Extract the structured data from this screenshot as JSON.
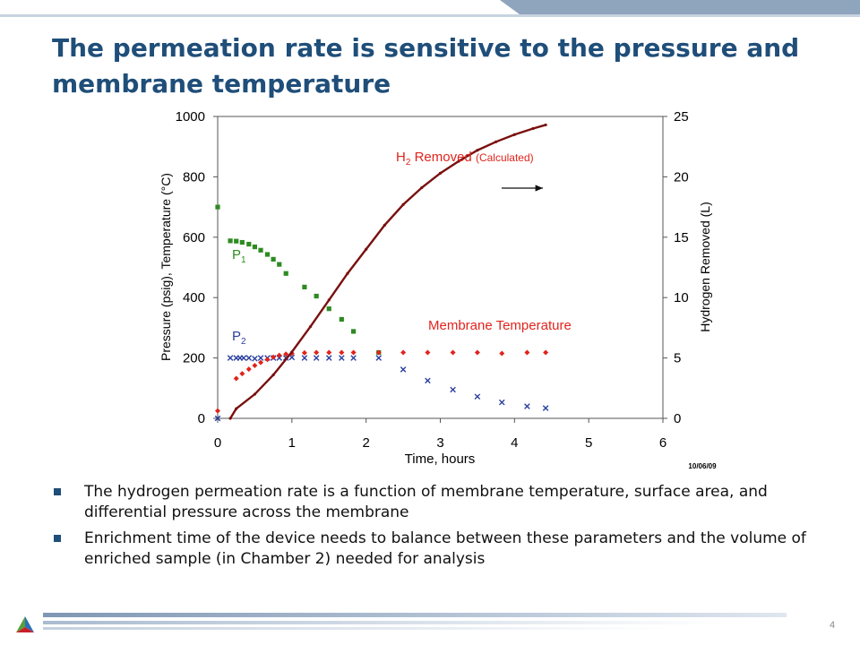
{
  "slide": {
    "title": "The permeation rate is sensitive to the pressure and membrane temperature",
    "bullets": [
      "The hydrogen permeation rate is a function of membrane temperature, surface area, and differential pressure across the membrane",
      "Enrichment time of the device needs to balance between these parameters and the volume of enriched sample (in Chamber 2) needed for analysis"
    ],
    "page_number": "4"
  },
  "colors": {
    "title": "#1f4e79",
    "p1": "#2e8b22",
    "p2": "#2b3f9e",
    "temperature": "#e0241c",
    "h2_removed": "#7a1010"
  },
  "chart_data": {
    "type": "scatter",
    "xlabel": "Time, hours",
    "ylabel": "Pressure (psig), Temperature (°C)",
    "y2label": "Hydrogen Removed (L)",
    "x_ticks": [
      "0",
      "1",
      "2",
      "3",
      "4",
      "5",
      "6"
    ],
    "y_ticks": [
      "0",
      "200",
      "400",
      "600",
      "800",
      "1000"
    ],
    "y2_ticks": [
      "0",
      "5",
      "10",
      "15",
      "20",
      "25"
    ],
    "xlim": [
      0,
      6
    ],
    "ylim": [
      0,
      1000
    ],
    "y2lim": [
      0,
      25
    ],
    "date_stamp": "10/06/09",
    "grid": false,
    "series": [
      {
        "name": "P",
        "subscript": "1",
        "marker": "square",
        "axis": "left",
        "x": [
          0,
          0.17,
          0.25,
          0.33,
          0.42,
          0.5,
          0.58,
          0.67,
          0.75,
          0.83,
          0.92,
          1.17,
          1.33,
          1.5,
          1.67,
          1.83,
          2.17
        ],
        "y": [
          700,
          588,
          587,
          583,
          577,
          568,
          557,
          543,
          527,
          510,
          480,
          435,
          405,
          363,
          328,
          288,
          218
        ]
      },
      {
        "name": "P",
        "subscript": "2",
        "marker": "x",
        "axis": "left",
        "x": [
          0,
          0.17,
          0.25,
          0.3,
          0.35,
          0.42,
          0.5,
          0.58,
          0.67,
          0.75,
          0.83,
          0.92,
          1.0,
          1.17,
          1.33,
          1.5,
          1.67,
          1.83,
          2.17,
          2.5,
          2.83,
          3.17,
          3.5,
          3.83,
          4.17,
          4.42
        ],
        "y": [
          0,
          200,
          200,
          200,
          200,
          200,
          198,
          200,
          200,
          200,
          200,
          200,
          202,
          200,
          200,
          200,
          200,
          200,
          200,
          162,
          125,
          95,
          72,
          53,
          40,
          34
        ]
      },
      {
        "name": "Membrane Temperature",
        "marker": "diamond",
        "axis": "left",
        "x": [
          0,
          0.25,
          0.33,
          0.42,
          0.5,
          0.58,
          0.67,
          0.75,
          0.83,
          0.92,
          1.0,
          1.17,
          1.33,
          1.5,
          1.67,
          1.83,
          2.17,
          2.5,
          2.83,
          3.17,
          3.5,
          3.83,
          4.17,
          4.42
        ],
        "y": [
          25,
          132,
          148,
          163,
          175,
          185,
          195,
          203,
          209,
          213,
          215,
          217,
          218,
          218,
          218,
          218,
          218,
          218,
          218,
          218,
          218,
          215,
          218,
          218
        ]
      },
      {
        "name": "H2 Removed (Calculated)",
        "label_main": "H",
        "label_sub": "2",
        "label_rest": " Removed ",
        "label_small": "(Calculated)",
        "marker": "line",
        "axis": "right",
        "x": [
          0.17,
          0.25,
          0.5,
          0.75,
          1.0,
          1.25,
          1.5,
          1.75,
          2.0,
          2.25,
          2.5,
          2.75,
          3.0,
          3.25,
          3.5,
          3.75,
          4.0,
          4.25,
          4.42
        ],
        "y": [
          0,
          0.8,
          2.0,
          3.6,
          5.5,
          7.6,
          9.8,
          12.0,
          14.0,
          16.0,
          17.7,
          19.1,
          20.3,
          21.3,
          22.2,
          22.9,
          23.5,
          24.0,
          24.3
        ]
      }
    ]
  }
}
